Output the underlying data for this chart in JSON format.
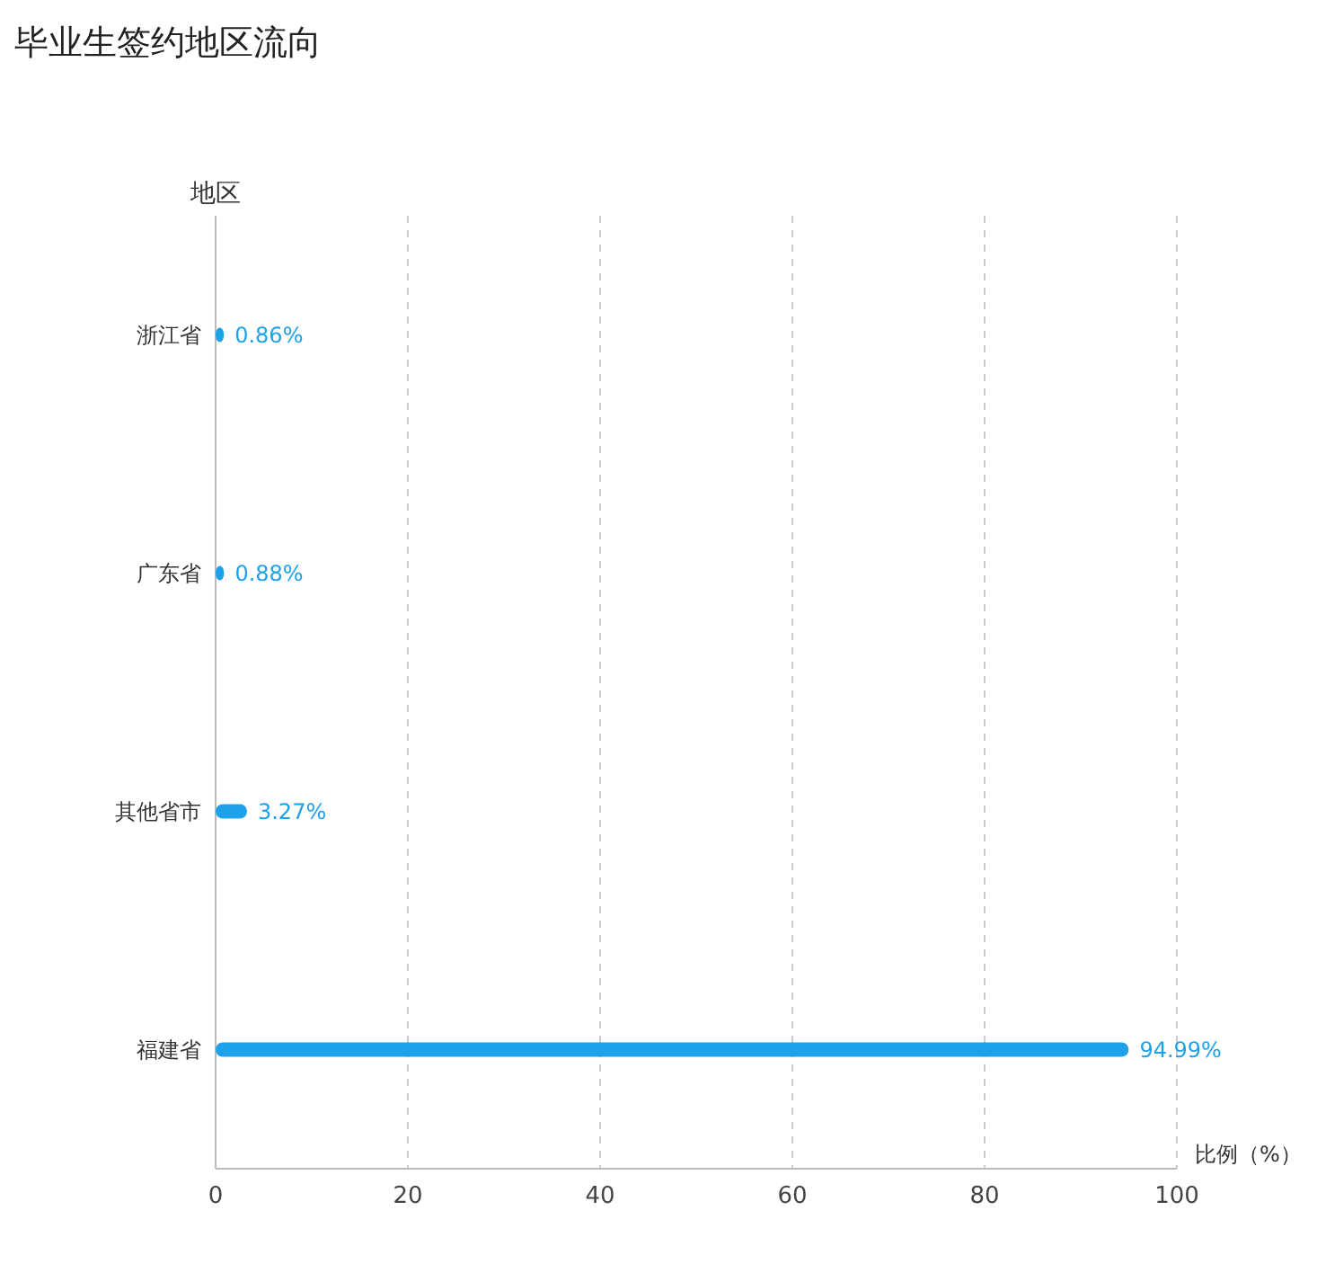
{
  "chart_data": {
    "type": "bar",
    "orientation": "horizontal",
    "title": "毕业生签约地区流向",
    "xlabel": "比例（%）",
    "ylabel": "地区",
    "categories": [
      "浙江省",
      "广东省",
      "其他省市",
      "福建省"
    ],
    "values": [
      0.86,
      0.88,
      3.27,
      94.99
    ],
    "value_labels": [
      "0.86%",
      "0.88%",
      "3.27%",
      "94.99%"
    ],
    "color": "#1ea1e8",
    "xlim": [
      0,
      100
    ],
    "xticks": [
      0,
      20,
      40,
      60,
      80,
      100
    ],
    "grid": "x"
  }
}
